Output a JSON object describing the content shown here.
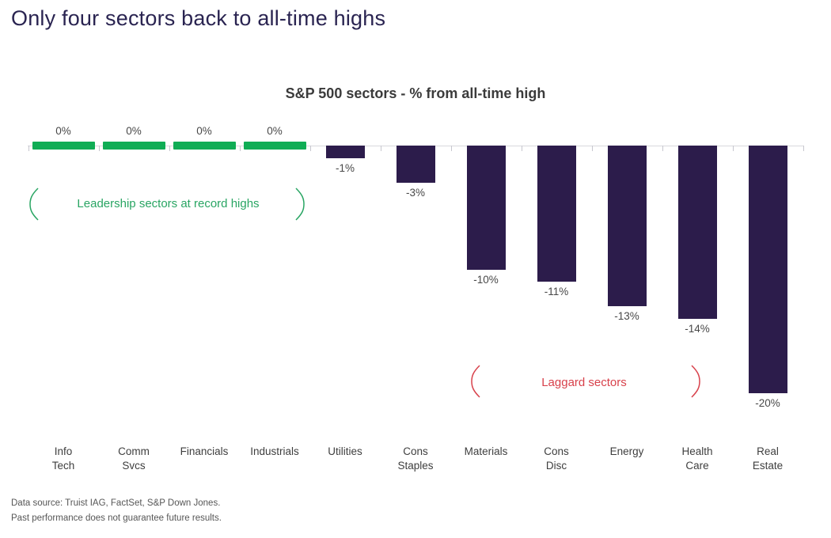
{
  "page_title": "Only four sectors back to all-time highs",
  "chart_data": {
    "type": "bar",
    "title": "S&P 500 sectors - % from all-time high",
    "categories": [
      "Info Tech",
      "Comm Svcs",
      "Financials",
      "Industrials",
      "Utilities",
      "Cons Staples",
      "Materials",
      "Cons Disc",
      "Energy",
      "Health Care",
      "Real Estate"
    ],
    "values": [
      0,
      0,
      0,
      0,
      -1,
      -3,
      -10,
      -11,
      -13,
      -14,
      -20
    ],
    "data_labels": [
      "0%",
      "0%",
      "0%",
      "0%",
      "-1%",
      "-3%",
      "-10%",
      "-11%",
      "-13%",
      "-14%",
      "-20%"
    ],
    "xlabel": "",
    "ylabel": "% from all-time high",
    "ylim": [
      -21,
      1
    ],
    "grid": false,
    "legend": "none",
    "colors": {
      "record_high_bar": "#10ad55",
      "laggard_bar": "#2c1c4b",
      "leadership_annotation": "#29a563",
      "laggard_annotation": "#d8414b"
    },
    "annotations": [
      {
        "id": "leadership",
        "text": "Leadership sectors at record highs",
        "color": "#29a563"
      },
      {
        "id": "laggard",
        "text": "Laggard sectors",
        "color": "#d8414b"
      }
    ]
  },
  "footnotes": [
    "Data source: Truist IAG, FactSet, S&P Down Jones.",
    "Past performance does not guarantee future results."
  ]
}
